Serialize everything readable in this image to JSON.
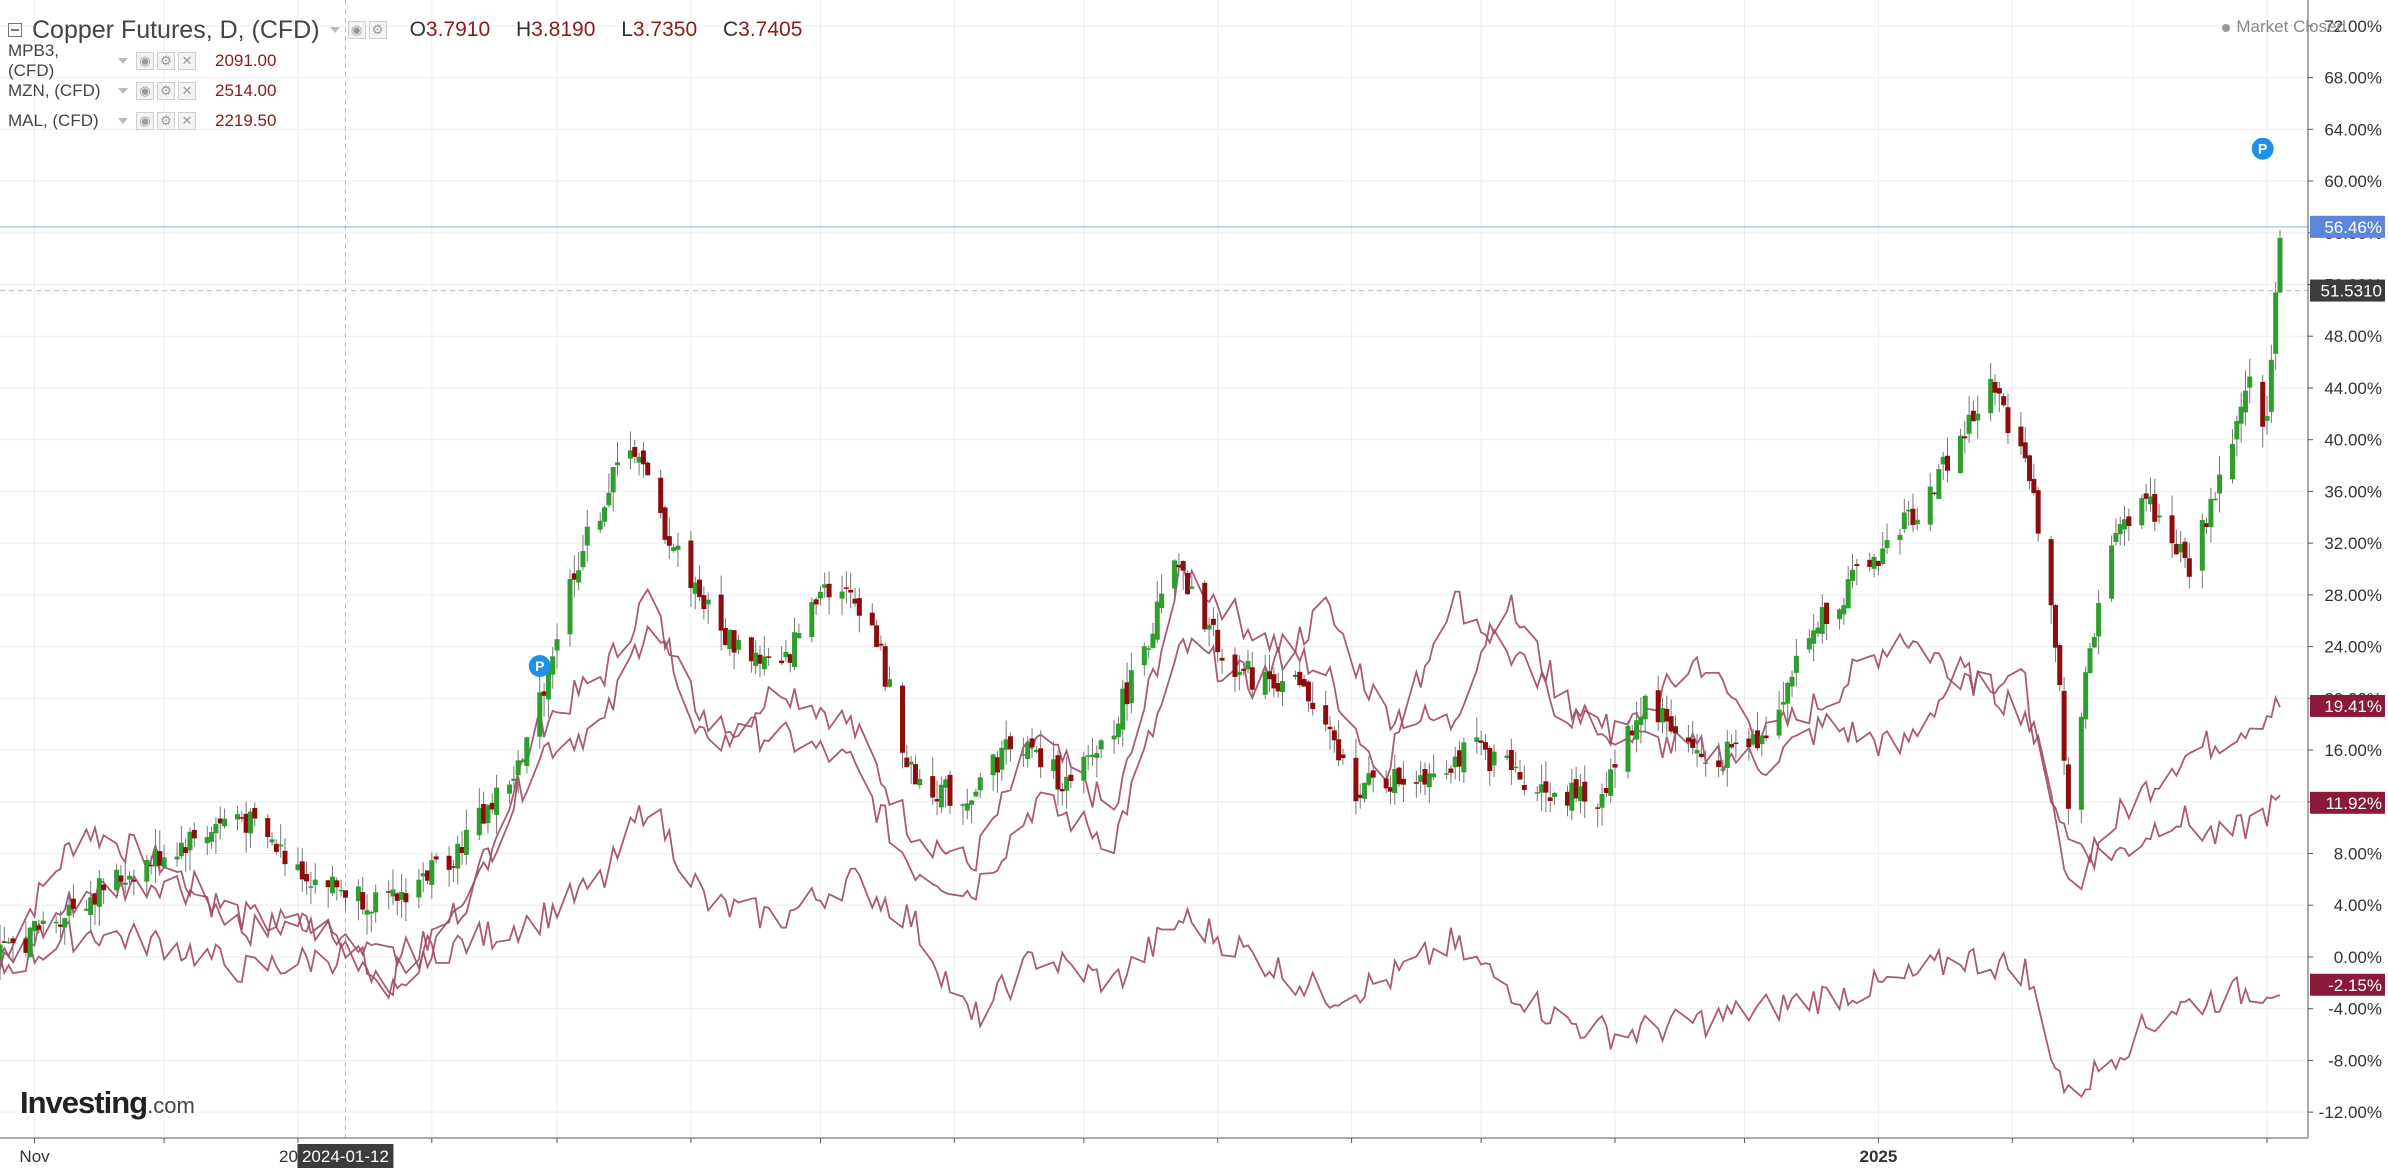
{
  "header": {
    "symbol_title": "Copper Futures, D, (CFD)",
    "ohlc": [
      {
        "label": "O",
        "value": "3.7910"
      },
      {
        "label": "H",
        "value": "3.8190"
      },
      {
        "label": "L",
        "value": "3.7350"
      },
      {
        "label": "C",
        "value": "3.7405"
      }
    ],
    "market_status": "Market Closed"
  },
  "indicators": [
    {
      "name": "MPB3, (CFD)",
      "value": "2091.00"
    },
    {
      "name": "MZN, (CFD)",
      "value": "2514.00"
    },
    {
      "name": "MAL, (CFD)",
      "value": "2219.50"
    }
  ],
  "logo": {
    "main": "Investing",
    "suffix": ".com"
  },
  "icons": {
    "marker": "P"
  },
  "colors": {
    "up": "#2f9e2f",
    "down": "#8b0d0d",
    "compare_line": "#a0486a",
    "current_line": "#5b86d9",
    "badge_blue": "#5b86d9",
    "badge_dark": "#3c3c3c",
    "badge_maroon": "#8b1a3a",
    "marker": "#1e90e8"
  },
  "chart_data": {
    "type": "line",
    "title": "Copper Futures, D, (CFD)",
    "x_range": [
      "2023-10-24",
      "2025-04-04"
    ],
    "ylim": [
      -14,
      74
    ],
    "y_unit": "%",
    "y_ticks": [
      "72.00%",
      "68.00%",
      "64.00%",
      "60.00%",
      "56.00%",
      "52.00%",
      "48.00%",
      "44.00%",
      "40.00%",
      "36.00%",
      "32.00%",
      "28.00%",
      "24.00%",
      "20.00%",
      "16.00%",
      "12.00%",
      "8.00%",
      "4.00%",
      "0.00%",
      "-4.00%",
      "-8.00%",
      "-12.00%"
    ],
    "y_tick_values": [
      72,
      68,
      64,
      60,
      56,
      52,
      48,
      44,
      40,
      36,
      32,
      28,
      24,
      20,
      16,
      12,
      8,
      4,
      0,
      -4,
      -8,
      -12
    ],
    "x_labels": [
      {
        "label": "Nov",
        "date": "2023-11-01"
      },
      {
        "label": "2024",
        "date": "2024-01-01"
      },
      {
        "label": "2025",
        "date": "2025-01-01"
      }
    ],
    "x_grid": [
      "2023-11-01",
      "2023-12-01",
      "2024-01-01",
      "2024-02-01",
      "2024-03-01",
      "2024-04-01",
      "2024-05-01",
      "2024-06-01",
      "2024-07-01",
      "2024-08-01",
      "2024-09-01",
      "2024-10-01",
      "2024-11-01",
      "2024-12-01",
      "2025-01-01",
      "2025-02-01",
      "2025-03-01",
      "2025-04-01"
    ],
    "crosshair": {
      "date": "2024-01-12",
      "label": "2024-01-12",
      "value": 51.531,
      "value_label": "51.5310"
    },
    "current_value": {
      "value": 56.46,
      "label": "56.46%"
    },
    "series_end_labels": [
      {
        "value": 19.41,
        "label": "19.41%"
      },
      {
        "value": 11.92,
        "label": "11.92%"
      },
      {
        "value": -2.15,
        "label": "-2.15%"
      }
    ],
    "markers": [
      {
        "date": "2024-02-26",
        "value": 22.5,
        "label": "P"
      },
      {
        "date": "2025-03-31",
        "value": 62.5,
        "label": "P"
      }
    ],
    "main_series": {
      "name": "Copper Futures",
      "kind": "candlestick",
      "points": [
        [
          "2023-10-24",
          0
        ],
        [
          "2023-11-10",
          4
        ],
        [
          "2023-12-01",
          8
        ],
        [
          "2023-12-18",
          11
        ],
        [
          "2024-01-05",
          6
        ],
        [
          "2024-01-22",
          4
        ],
        [
          "2024-02-06",
          8
        ],
        [
          "2024-02-22",
          15
        ],
        [
          "2024-03-05",
          30
        ],
        [
          "2024-03-18",
          40
        ],
        [
          "2024-03-26",
          33
        ],
        [
          "2024-04-08",
          25
        ],
        [
          "2024-04-22",
          22
        ],
        [
          "2024-05-01",
          29
        ],
        [
          "2024-05-12",
          27
        ],
        [
          "2024-05-22",
          14
        ],
        [
          "2024-06-03",
          12
        ],
        [
          "2024-06-15",
          17
        ],
        [
          "2024-06-28",
          13
        ],
        [
          "2024-07-08",
          18
        ],
        [
          "2024-07-22",
          30
        ],
        [
          "2024-08-05",
          22
        ],
        [
          "2024-08-20",
          21
        ],
        [
          "2024-09-02",
          13
        ],
        [
          "2024-09-16",
          14
        ],
        [
          "2024-09-30",
          16
        ],
        [
          "2024-10-15",
          13
        ],
        [
          "2024-10-28",
          12
        ],
        [
          "2024-11-08",
          20
        ],
        [
          "2024-11-22",
          15
        ],
        [
          "2024-12-05",
          17
        ],
        [
          "2024-12-18",
          26
        ],
        [
          "2025-01-01",
          31
        ],
        [
          "2025-01-13",
          36
        ],
        [
          "2025-01-27",
          44
        ],
        [
          "2025-02-04",
          39
        ],
        [
          "2025-02-10",
          28
        ],
        [
          "2025-02-14",
          12
        ],
        [
          "2025-02-22",
          30
        ],
        [
          "2025-03-03",
          36
        ],
        [
          "2025-03-14",
          30
        ],
        [
          "2025-03-24",
          40
        ],
        [
          "2025-03-28",
          44
        ],
        [
          "2025-04-01",
          41
        ],
        [
          "2025-04-04",
          56.5
        ]
      ]
    },
    "compare_series": [
      {
        "points": [
          [
            "2023-10-24",
            0
          ],
          [
            "2023-11-12",
            10
          ],
          [
            "2023-12-02",
            7
          ],
          [
            "2023-12-20",
            2
          ],
          [
            "2024-01-08",
            3
          ],
          [
            "2024-01-22",
            -3
          ],
          [
            "2024-02-08",
            3
          ],
          [
            "2024-02-26",
            18
          ],
          [
            "2024-03-12",
            22
          ],
          [
            "2024-03-22",
            28
          ],
          [
            "2024-04-05",
            16
          ],
          [
            "2024-04-22",
            21
          ],
          [
            "2024-05-08",
            18
          ],
          [
            "2024-05-22",
            10
          ],
          [
            "2024-06-05",
            7
          ],
          [
            "2024-06-20",
            17
          ],
          [
            "2024-07-08",
            11
          ],
          [
            "2024-07-24",
            30
          ],
          [
            "2024-08-10",
            25
          ],
          [
            "2024-08-26",
            22
          ],
          [
            "2024-09-08",
            14
          ],
          [
            "2024-09-24",
            28
          ],
          [
            "2024-10-06",
            24
          ],
          [
            "2024-10-20",
            19
          ],
          [
            "2024-11-02",
            17
          ],
          [
            "2024-11-20",
            23
          ],
          [
            "2024-12-06",
            17
          ],
          [
            "2024-12-20",
            20
          ],
          [
            "2025-01-06",
            25
          ],
          [
            "2025-01-20",
            22
          ],
          [
            "2025-02-04",
            21
          ],
          [
            "2025-02-14",
            5
          ],
          [
            "2025-02-26",
            11
          ],
          [
            "2025-03-10",
            15
          ],
          [
            "2025-03-22",
            17
          ],
          [
            "2025-04-04",
            19.41
          ]
        ]
      },
      {
        "points": [
          [
            "2023-10-24",
            -1
          ],
          [
            "2023-11-12",
            5
          ],
          [
            "2023-12-02",
            6
          ],
          [
            "2023-12-20",
            3
          ],
          [
            "2024-01-08",
            2
          ],
          [
            "2024-01-22",
            -2
          ],
          [
            "2024-02-08",
            4
          ],
          [
            "2024-02-26",
            16
          ],
          [
            "2024-03-12",
            18
          ],
          [
            "2024-03-22",
            26
          ],
          [
            "2024-04-05",
            18
          ],
          [
            "2024-04-22",
            17
          ],
          [
            "2024-05-08",
            15
          ],
          [
            "2024-05-22",
            7
          ],
          [
            "2024-06-05",
            5
          ],
          [
            "2024-06-20",
            12
          ],
          [
            "2024-07-08",
            9
          ],
          [
            "2024-07-24",
            24
          ],
          [
            "2024-08-10",
            21
          ],
          [
            "2024-08-26",
            27
          ],
          [
            "2024-09-08",
            19
          ],
          [
            "2024-09-24",
            18
          ],
          [
            "2024-10-06",
            28
          ],
          [
            "2024-10-20",
            20
          ],
          [
            "2024-11-02",
            17
          ],
          [
            "2024-11-20",
            16
          ],
          [
            "2024-12-06",
            15
          ],
          [
            "2024-12-20",
            18
          ],
          [
            "2025-01-06",
            16
          ],
          [
            "2025-01-20",
            22
          ],
          [
            "2025-02-04",
            19
          ],
          [
            "2025-02-14",
            9
          ],
          [
            "2025-02-26",
            8
          ],
          [
            "2025-03-10",
            11
          ],
          [
            "2025-03-22",
            9
          ],
          [
            "2025-04-04",
            11.92
          ]
        ]
      },
      {
        "points": [
          [
            "2023-10-24",
            -1
          ],
          [
            "2023-11-12",
            2
          ],
          [
            "2023-12-02",
            1
          ],
          [
            "2023-12-20",
            -1
          ],
          [
            "2024-01-08",
            0
          ],
          [
            "2024-01-22",
            0
          ],
          [
            "2024-02-08",
            1
          ],
          [
            "2024-02-26",
            3
          ],
          [
            "2024-03-12",
            6
          ],
          [
            "2024-03-22",
            12
          ],
          [
            "2024-04-05",
            4
          ],
          [
            "2024-04-22",
            3
          ],
          [
            "2024-05-08",
            6
          ],
          [
            "2024-05-22",
            3
          ],
          [
            "2024-06-05",
            -5
          ],
          [
            "2024-06-20",
            0
          ],
          [
            "2024-07-08",
            -2
          ],
          [
            "2024-07-24",
            3
          ],
          [
            "2024-08-10",
            0
          ],
          [
            "2024-08-26",
            -3
          ],
          [
            "2024-09-08",
            -2
          ],
          [
            "2024-09-24",
            1
          ],
          [
            "2024-10-06",
            -2
          ],
          [
            "2024-10-20",
            -5
          ],
          [
            "2024-11-02",
            -6
          ],
          [
            "2024-11-20",
            -5
          ],
          [
            "2024-12-06",
            -4
          ],
          [
            "2024-12-20",
            -3
          ],
          [
            "2025-01-06",
            -2
          ],
          [
            "2025-01-20",
            0
          ],
          [
            "2025-02-04",
            -1
          ],
          [
            "2025-02-14",
            -11
          ],
          [
            "2025-02-26",
            -7
          ],
          [
            "2025-03-10",
            -4
          ],
          [
            "2025-03-22",
            -3
          ],
          [
            "2025-04-04",
            -2.15
          ]
        ]
      }
    ]
  }
}
